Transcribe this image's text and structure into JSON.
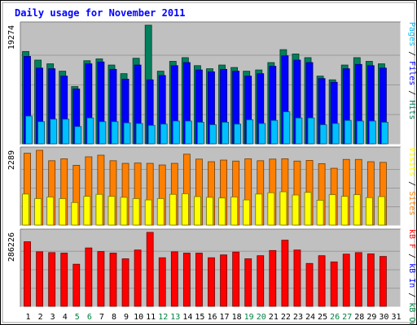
{
  "title": "Daily usage for November 2011",
  "colors": {
    "background": "#ffffff",
    "plot_bg": "#c0c0c0",
    "title": "#0000ff",
    "grid": "#9a9a9a",
    "day_label": "#000000",
    "weekend_label": "#008040",
    "hits": "#00805c",
    "files": "#0000ff",
    "pages": "#00c0ff",
    "visits": "#ffff00",
    "sites": "#ff8000",
    "kbf": "#ff0000",
    "kbin": "#0000ff",
    "kbout": "#008040"
  },
  "chart_data": [
    {
      "type": "bar",
      "panel": "hits_files_pages",
      "y_tick_label": "19274",
      "ylim": [
        0,
        19274
      ],
      "right_label_parts": [
        {
          "text": "Pages",
          "color": "#00c0ff"
        },
        {
          "text": " / ",
          "color": "#000000"
        },
        {
          "text": "Files",
          "color": "#0000ff"
        },
        {
          "text": " / ",
          "color": "#000000"
        },
        {
          "text": "Hits",
          "color": "#00805c"
        }
      ],
      "categories": [
        "1",
        "2",
        "3",
        "4",
        "5",
        "6",
        "7",
        "8",
        "9",
        "10",
        "11",
        "12",
        "13",
        "14",
        "15",
        "16",
        "17",
        "18",
        "19",
        "20",
        "21",
        "22",
        "23",
        "24",
        "25",
        "26",
        "27",
        "28",
        "29",
        "30",
        "31"
      ],
      "weekend_days": [
        "5",
        "6",
        "12",
        "13",
        "19",
        "20",
        "26",
        "27"
      ],
      "series": [
        {
          "name": "Hits",
          "color_key": "hits",
          "values": [
            15000,
            13600,
            13000,
            11800,
            9300,
            13500,
            13800,
            12800,
            11400,
            13900,
            19274,
            11800,
            13400,
            14000,
            12700,
            12200,
            12800,
            12400,
            11800,
            12000,
            13200,
            15300,
            14600,
            14000,
            11000,
            10400,
            12800,
            14000,
            13400,
            13000,
            0
          ]
        },
        {
          "name": "Files",
          "color_key": "files",
          "values": [
            14200,
            12300,
            12200,
            11000,
            8900,
            13000,
            13300,
            12100,
            10500,
            12800,
            10400,
            11100,
            12700,
            13200,
            12000,
            11700,
            12100,
            11800,
            11000,
            11400,
            12600,
            14300,
            13600,
            13200,
            10600,
            10000,
            12200,
            12900,
            12700,
            12300,
            0
          ]
        },
        {
          "name": "Pages",
          "color_key": "pages",
          "values": [
            4500,
            3600,
            4000,
            4000,
            2800,
            4200,
            3600,
            3600,
            3400,
            3300,
            3000,
            3200,
            3700,
            3700,
            3500,
            3100,
            3500,
            3200,
            3900,
            3300,
            3800,
            5200,
            4200,
            4200,
            3100,
            3300,
            3800,
            3700,
            3700,
            3500,
            0
          ]
        }
      ]
    },
    {
      "type": "bar",
      "panel": "visits_sites",
      "y_tick_label": "2289",
      "ylim": [
        0,
        2289
      ],
      "right_label_parts": [
        {
          "text": "Visits",
          "color": "#ffff00"
        },
        {
          "text": " / ",
          "color": "#000000"
        },
        {
          "text": "Sites",
          "color": "#ff8000"
        }
      ],
      "categories": [
        "1",
        "2",
        "3",
        "4",
        "5",
        "6",
        "7",
        "8",
        "9",
        "10",
        "11",
        "12",
        "13",
        "14",
        "15",
        "16",
        "17",
        "18",
        "19",
        "20",
        "21",
        "22",
        "23",
        "24",
        "25",
        "26",
        "27",
        "28",
        "29",
        "30",
        "31"
      ],
      "series": [
        {
          "name": "Sites",
          "color_key": "sites",
          "values": [
            2200,
            2289,
            1970,
            2030,
            1830,
            2090,
            2140,
            1970,
            1890,
            1900,
            1890,
            1840,
            1890,
            2170,
            2020,
            1940,
            1990,
            1960,
            2030,
            1970,
            2020,
            2030,
            1960,
            1980,
            1880,
            1740,
            2010,
            2010,
            1940,
            1920,
            0
          ]
        },
        {
          "name": "Visits",
          "color_key": "visits",
          "values": [
            950,
            810,
            860,
            810,
            690,
            880,
            940,
            880,
            850,
            810,
            770,
            810,
            940,
            960,
            870,
            850,
            830,
            860,
            770,
            950,
            990,
            1020,
            920,
            1000,
            760,
            930,
            880,
            930,
            840,
            870,
            0
          ]
        }
      ]
    },
    {
      "type": "bar",
      "panel": "kbytes",
      "y_tick_label": "286226",
      "ylim": [
        0,
        286226
      ],
      "right_label_parts": [
        {
          "text": "kB F",
          "color": "#ff0000"
        },
        {
          "text": " / ",
          "color": "#000000"
        },
        {
          "text": "kB In",
          "color": "#0000ff"
        },
        {
          "text": " / ",
          "color": "#000000"
        },
        {
          "text": "kB Out",
          "color": "#008040"
        }
      ],
      "categories": [
        "1",
        "2",
        "3",
        "4",
        "5",
        "6",
        "7",
        "8",
        "9",
        "10",
        "11",
        "12",
        "13",
        "14",
        "15",
        "16",
        "17",
        "18",
        "19",
        "20",
        "21",
        "22",
        "23",
        "24",
        "25",
        "26",
        "27",
        "28",
        "29",
        "30",
        "31"
      ],
      "series": [
        {
          "name": "kB F",
          "color_key": "kbf",
          "values": [
            250000,
            211000,
            208000,
            206000,
            163000,
            226000,
            212000,
            206000,
            184000,
            218000,
            286226,
            188000,
            211000,
            206000,
            206000,
            188000,
            199000,
            210000,
            184000,
            196000,
            216000,
            256000,
            218000,
            166000,
            196000,
            172000,
            202000,
            208000,
            203000,
            193000,
            0
          ]
        }
      ]
    }
  ]
}
